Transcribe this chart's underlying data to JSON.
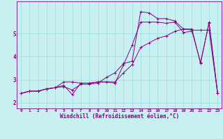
{
  "xlabel": "Windchill (Refroidissement éolien,°C)",
  "bg_color": "#c8f0f0",
  "line_color": "#880088",
  "grid_color": "#99dddd",
  "x_ticks": [
    0,
    1,
    2,
    3,
    4,
    5,
    6,
    7,
    8,
    9,
    10,
    11,
    12,
    13,
    14,
    15,
    16,
    17,
    18,
    19,
    20,
    21,
    22,
    23
  ],
  "ylim": [
    1.75,
    6.4
  ],
  "xlim": [
    -0.5,
    23.5
  ],
  "line1_y": [
    2.4,
    2.5,
    2.5,
    2.6,
    2.65,
    2.7,
    2.55,
    2.8,
    2.8,
    2.85,
    3.1,
    3.3,
    3.7,
    3.8,
    5.95,
    5.9,
    5.65,
    5.65,
    5.55,
    5.2,
    5.2,
    3.7,
    5.5,
    2.4
  ],
  "line2_y": [
    2.4,
    2.5,
    2.5,
    2.6,
    2.65,
    2.9,
    2.9,
    2.85,
    2.85,
    2.9,
    2.9,
    2.9,
    3.3,
    3.65,
    4.4,
    4.6,
    4.8,
    4.9,
    5.1,
    5.2,
    5.15,
    5.15,
    5.15,
    2.4
  ],
  "line3_y": [
    2.4,
    2.5,
    2.5,
    2.6,
    2.65,
    2.75,
    2.35,
    2.85,
    2.85,
    2.9,
    2.9,
    2.85,
    3.65,
    4.5,
    5.5,
    5.5,
    5.5,
    5.45,
    5.5,
    5.05,
    5.1,
    3.75,
    5.45,
    2.4
  ],
  "yticks": [
    2,
    3,
    4,
    5
  ],
  "xlabel_fontsize": 5.5,
  "tick_fontsize": 4.5
}
